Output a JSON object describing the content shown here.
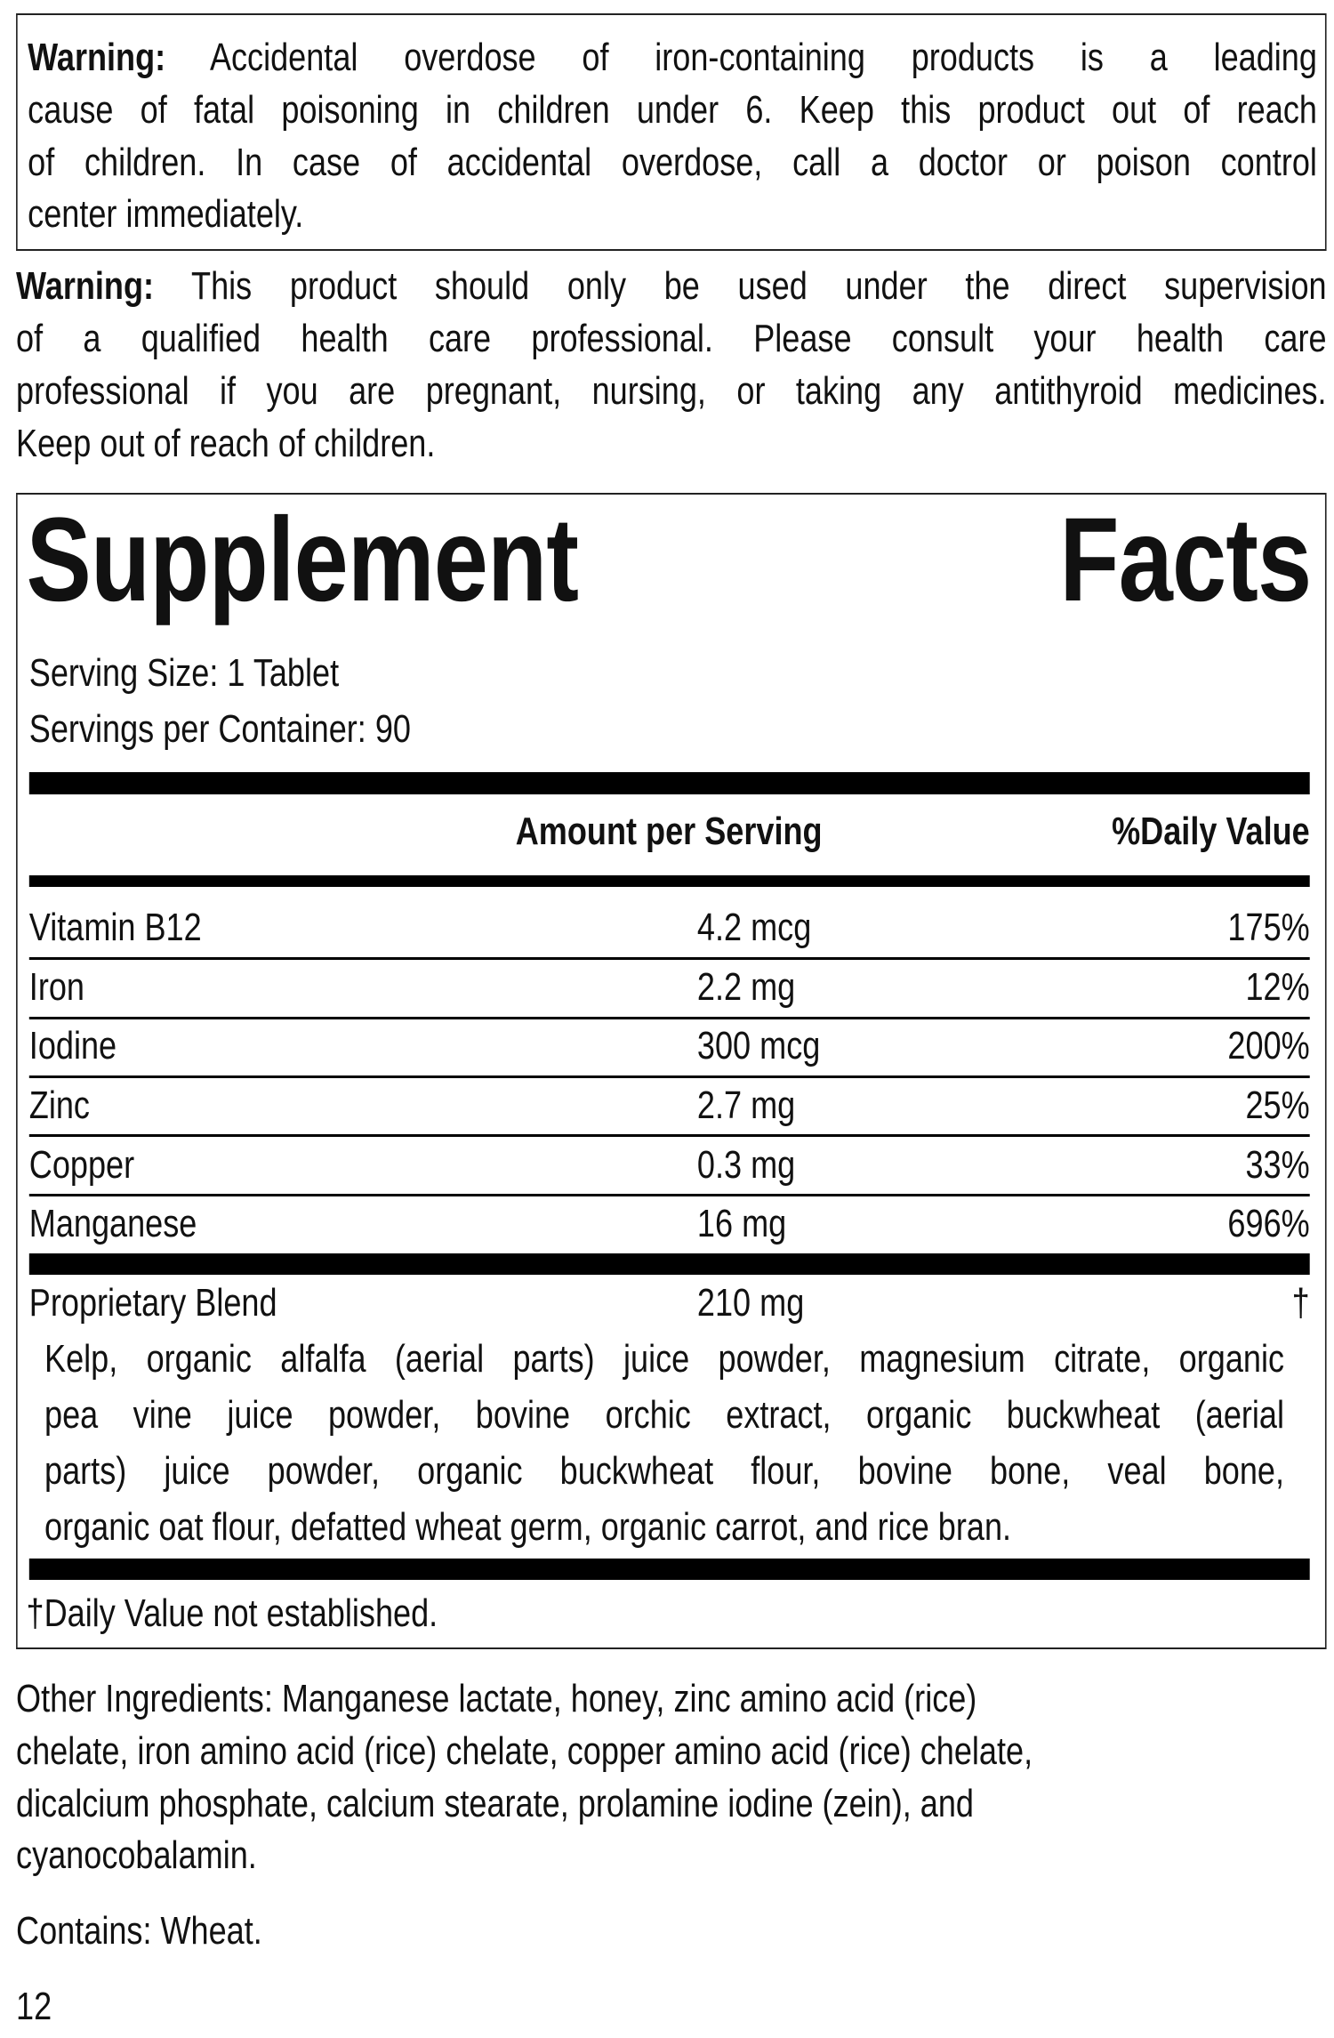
{
  "warning_iron": {
    "label": "Warning:",
    "lines": [
      "Accidental overdose of iron-containing products is a leading",
      "cause of fatal poisoning in children under 6. Keep this product out of reach",
      "of children. In case of accidental overdose, call a doctor or poison control",
      "center immediately."
    ]
  },
  "warning_supervision": {
    "label": "Warning:",
    "lines": [
      "This product should only be used under the direct supervision",
      "of a qualified health care professional. Please consult your health care",
      "professional if you are pregnant, nursing, or taking any antithyroid medicines.",
      "Keep out of reach of children."
    ]
  },
  "facts": {
    "title_left": "Supplement",
    "title_right": "Facts",
    "serving_size": "Serving Size: 1 Tablet",
    "servings_per_container": "Servings per Container: 90",
    "col_amount": "Amount per Serving",
    "col_dv": "%Daily Value",
    "rows": [
      {
        "name": "Vitamin B12",
        "amount": "4.2 mcg",
        "dv": "175%"
      },
      {
        "name": "Iron",
        "amount": "2.2 mg",
        "dv": "12%"
      },
      {
        "name": "Iodine",
        "amount": "300 mcg",
        "dv": "200%"
      },
      {
        "name": "Zinc",
        "amount": "2.7 mg",
        "dv": "25%"
      },
      {
        "name": "Copper",
        "amount": "0.3 mg",
        "dv": "33%"
      },
      {
        "name": "Manganese",
        "amount": "16 mg",
        "dv": "696%"
      }
    ],
    "blend": {
      "name": "Proprietary Blend",
      "amount": "210 mg",
      "dv": "†",
      "lines": [
        "Kelp, organic alfalfa (aerial parts) juice powder, magnesium citrate, organic",
        "pea vine juice powder, bovine orchic extract, organic buckwheat (aerial",
        "parts) juice powder, organic buckwheat flour, bovine bone, veal bone,",
        "organic oat flour, defatted wheat germ, organic carrot, and rice bran."
      ]
    },
    "footnote": "†Daily Value not established."
  },
  "other_ingredients": [
    "Other Ingredients: Manganese lactate, honey, zinc amino acid (rice)",
    "chelate, iron amino acid (rice) chelate, copper amino acid (rice) chelate,",
    "dicalcium phosphate, calcium stearate, prolamine iodine (zein), and",
    "cyanocobalamin."
  ],
  "contains": "Contains: Wheat.",
  "page_number": "12"
}
